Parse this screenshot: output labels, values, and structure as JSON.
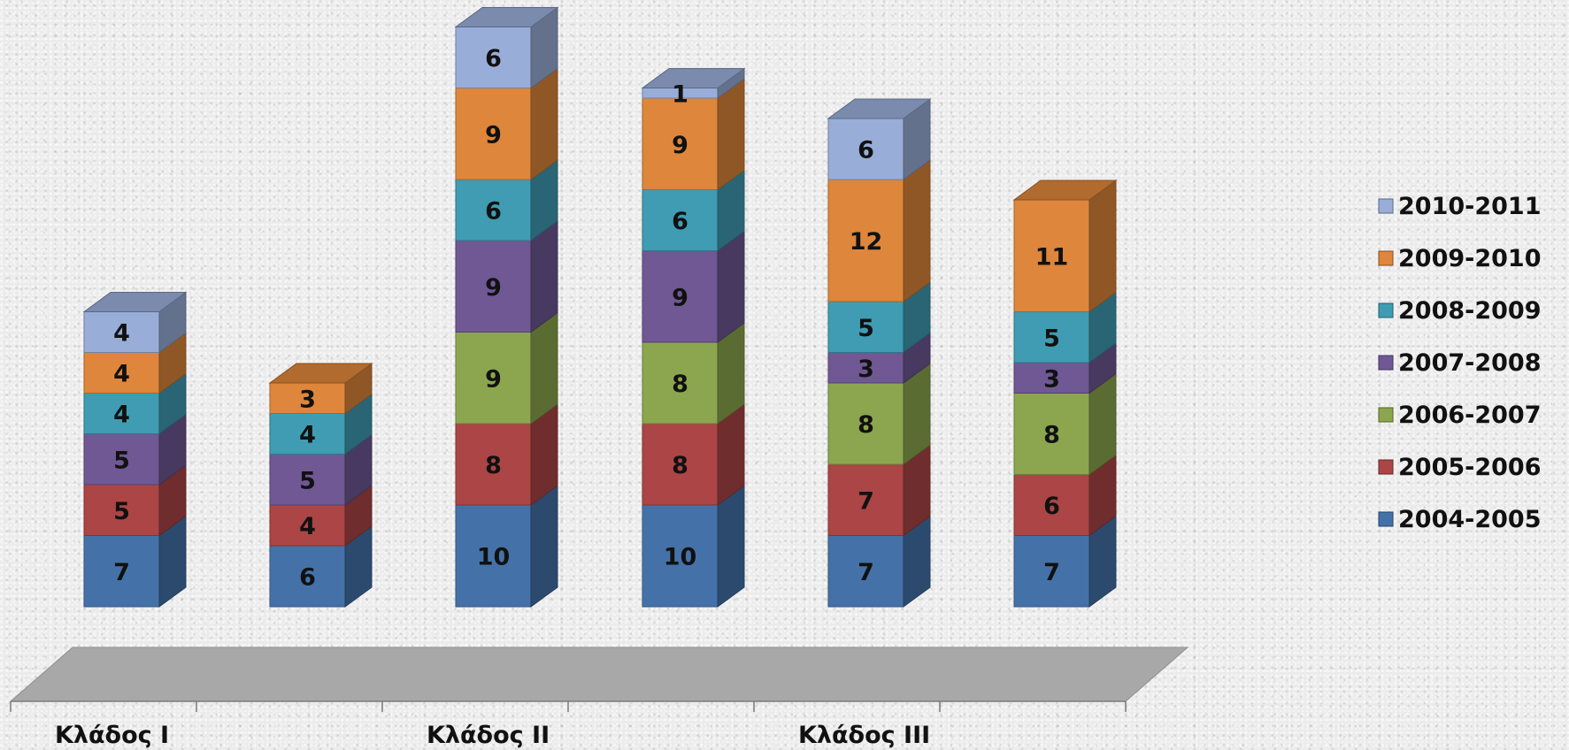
{
  "chart_data": {
    "type": "bar",
    "stacked": true,
    "three_d": true,
    "groups": [
      {
        "label": "Κλάδος Ι",
        "bars": 2
      },
      {
        "label": "Κλάδος ΙΙ",
        "bars": 2
      },
      {
        "label": "Κλάδος ΙΙΙ",
        "bars": 2
      }
    ],
    "series": [
      {
        "name": "2004-2005",
        "color": "#4472a8",
        "values": [
          7,
          6,
          10,
          10,
          7,
          7
        ]
      },
      {
        "name": "2005-2006",
        "color": "#ac4545",
        "values": [
          5,
          4,
          8,
          8,
          7,
          6
        ]
      },
      {
        "name": "2006-2007",
        "color": "#8ca64f",
        "values": [
          null,
          null,
          9,
          8,
          8,
          8
        ]
      },
      {
        "name": "2007-2008",
        "color": "#6f5894",
        "values": [
          5,
          5,
          9,
          9,
          3,
          3
        ]
      },
      {
        "name": "2008-2009",
        "color": "#3f9cb3",
        "values": [
          4,
          4,
          6,
          6,
          5,
          5
        ]
      },
      {
        "name": "2009-2010",
        "color": "#de863b",
        "values": [
          4,
          3,
          9,
          9,
          12,
          11
        ]
      },
      {
        "name": "2010-2011",
        "color": "#98aed8",
        "values": [
          4,
          null,
          6,
          1,
          6,
          null
        ]
      }
    ],
    "legend": {
      "position": "right"
    },
    "grid": false
  }
}
